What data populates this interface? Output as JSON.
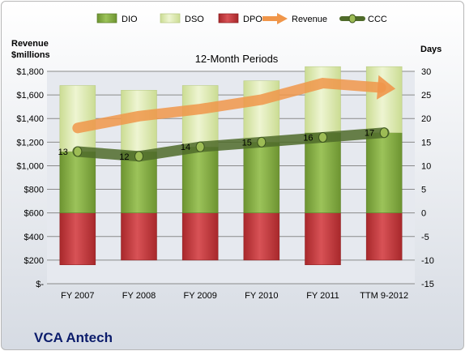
{
  "company": "VCA Antech",
  "chart_data": {
    "type": "bar",
    "title": "12-Month Periods",
    "left_axis_label": [
      "Revenue",
      "$millions"
    ],
    "right_axis_label": "Days",
    "categories": [
      "FY 2007",
      "FY 2008",
      "FY 2009",
      "FY 2010",
      "FY 2011",
      "TTM 9-2012"
    ],
    "left_axis": {
      "ylim": [
        0,
        1800
      ],
      "ticks": [
        0,
        200,
        400,
        600,
        800,
        1000,
        1200,
        1400,
        1600,
        1800
      ],
      "tick_labels": [
        "$-",
        "$200",
        "$400",
        "$600",
        "$800",
        "$1,000",
        "$1,200",
        "$1,400",
        "$1,600",
        "$1,800"
      ]
    },
    "right_axis": {
      "ylim": [
        -15,
        30
      ],
      "ticks": [
        -15,
        -10,
        -5,
        0,
        5,
        10,
        15,
        20,
        25,
        30
      ],
      "tick_labels": [
        "-15",
        "-10",
        "-5",
        "0",
        "5",
        "10",
        "15",
        "20",
        "25",
        "30"
      ]
    },
    "grid": true,
    "legend_position": "top",
    "series": [
      {
        "name": "DIO",
        "axis": "right",
        "kind": "stacked-bar",
        "color": "#7fa637",
        "values": [
          13,
          13,
          14,
          15,
          17,
          17
        ]
      },
      {
        "name": "DSO",
        "axis": "right",
        "kind": "stacked-bar",
        "color": "#d7e4a8",
        "values": [
          14,
          13,
          13,
          13,
          14,
          14
        ]
      },
      {
        "name": "DPO",
        "axis": "right",
        "kind": "negative-bar",
        "color": "#c0393b",
        "values": [
          -11,
          -10,
          -10,
          -10,
          -11,
          -10
        ]
      },
      {
        "name": "Revenue",
        "axis": "left",
        "kind": "arrow-line",
        "color": "#f0964a",
        "values": [
          1320,
          1420,
          1480,
          1560,
          1700,
          1660
        ]
      },
      {
        "name": "CCC",
        "axis": "right",
        "kind": "line-markers",
        "color": "#4f6b2a",
        "values": [
          13,
          12,
          14,
          15,
          16,
          17
        ]
      }
    ],
    "ccc_labels": [
      "13",
      "12",
      "14",
      "15",
      "16",
      "17"
    ]
  }
}
